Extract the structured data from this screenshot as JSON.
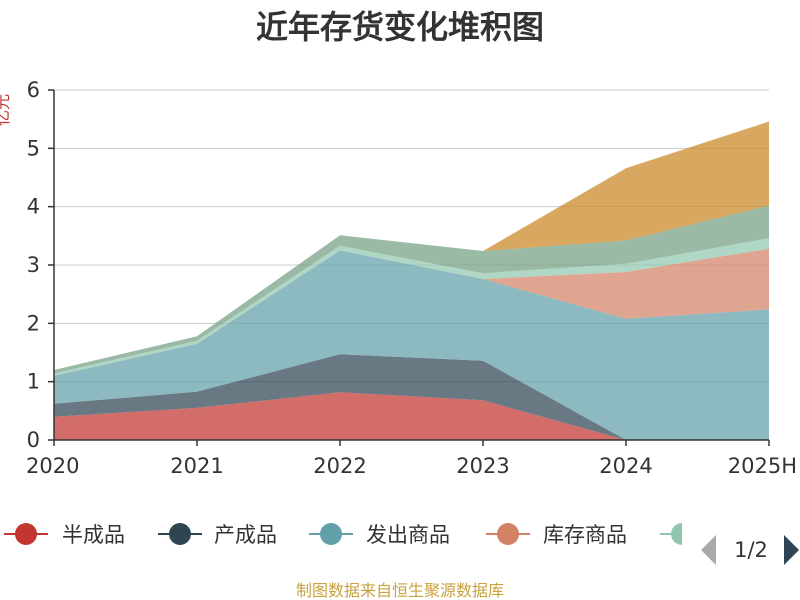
{
  "chart_data": {
    "type": "area",
    "stacked": true,
    "title": "近年存货变化堆积图",
    "ylabel": "亿元",
    "categories": [
      "2020",
      "2021",
      "2022",
      "2023",
      "2024",
      "2025H"
    ],
    "ylim": [
      0,
      6
    ],
    "yticks": [
      0,
      1,
      2,
      3,
      4,
      5,
      6
    ],
    "grid": true,
    "series": [
      {
        "name": "半成品",
        "color": "#c23531",
        "values": [
          0.4,
          0.55,
          0.82,
          0.68,
          0.0,
          0.0
        ]
      },
      {
        "name": "产成品",
        "color": "#2f4554",
        "values": [
          0.22,
          0.28,
          0.65,
          0.68,
          0.0,
          0.0
        ]
      },
      {
        "name": "发出商品",
        "color": "#61a0a8",
        "values": [
          0.48,
          0.82,
          1.78,
          1.4,
          2.08,
          2.24
        ]
      },
      {
        "name": "库存商品",
        "color": "#d48265",
        "values": [
          0.0,
          0.0,
          0.0,
          0.0,
          0.8,
          1.04
        ]
      },
      {
        "name": "",
        "color": "#91c7ae",
        "values": [
          0.04,
          0.05,
          0.08,
          0.1,
          0.14,
          0.18
        ]
      },
      {
        "name": "",
        "color": "#749f83",
        "values": [
          0.06,
          0.08,
          0.18,
          0.38,
          0.4,
          0.56
        ]
      },
      {
        "name": "",
        "color": "#ca8622",
        "values": [
          0.0,
          0.0,
          0.0,
          0.0,
          1.24,
          1.44
        ]
      }
    ],
    "legend": {
      "position": "bottom",
      "page": "1/2"
    },
    "source": "制图数据来自恒生聚源数据库"
  }
}
